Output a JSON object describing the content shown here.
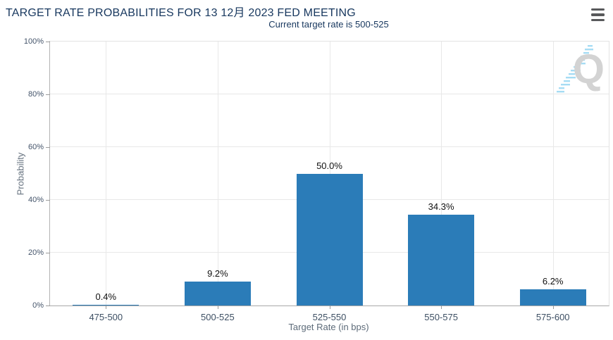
{
  "header": {
    "title": "TARGET RATE PROBABILITIES FOR 13 12月 2023 FED MEETING",
    "subtitle": "Current target rate is 500-525"
  },
  "menu": {
    "icon": "hamburger-menu-icon"
  },
  "watermark": {
    "letter": "Q"
  },
  "chart_data": {
    "type": "bar",
    "title": "TARGET RATE PROBABILITIES FOR 13 12月 2023 FED MEETING",
    "subtitle": "Current target rate is 500-525",
    "categories": [
      "475-500",
      "500-525",
      "525-550",
      "550-575",
      "575-600"
    ],
    "values": [
      0.4,
      9.2,
      50.0,
      34.3,
      6.2
    ],
    "data_labels": [
      "0.4%",
      "9.2%",
      "50.0%",
      "34.3%",
      "6.2%"
    ],
    "xlabel": "Target Rate (in bps)",
    "ylabel": "Probability",
    "ylim": [
      0,
      100
    ],
    "ytick_values": [
      0,
      20,
      40,
      60,
      80,
      100
    ],
    "ytick_labels": [
      "0%",
      "20%",
      "40%",
      "60%",
      "80%",
      "100%"
    ],
    "grid": true,
    "legend": "none",
    "bar_color": "#2b7cb8"
  },
  "colors": {
    "title": "#17375e",
    "subtitle": "#17375e",
    "bar": "#2b7cb8",
    "gridline": "#e8e8e8",
    "axis_line": "#a8a8a8",
    "tick_label": "#3d4f63",
    "axis_title": "#5d6b79",
    "data_label": "#111111",
    "menu_icon": "#58595b",
    "watermark_gray": "#d3d3d3",
    "watermark_blue": "#a6dcf4"
  }
}
